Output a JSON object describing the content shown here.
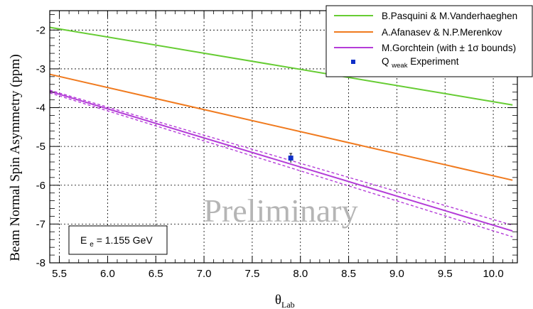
{
  "chart_data": {
    "type": "line",
    "xlabel_main": "θ",
    "xlabel_sub": "Lab",
    "ylabel": "Beam Normal Spin Asymmetry (ppm)",
    "xlim": [
      5.4,
      10.25
    ],
    "ylim": [
      -8,
      -1.5
    ],
    "xticks": [
      "5.5",
      "6.0",
      "6.5",
      "7.0",
      "7.5",
      "8.0",
      "8.5",
      "9.0",
      "9.5",
      "10.0"
    ],
    "yticks": [
      "-2",
      "-3",
      "-4",
      "-5",
      "-6",
      "-7",
      "-8"
    ],
    "grid": true,
    "legend_position": "top-right",
    "watermark": "Preliminary",
    "energy_label": {
      "main": "E",
      "sub": "e",
      "rest": " = 1.155 GeV"
    },
    "series": [
      {
        "name": "B.Pasquini & M.Vanderhaeghen",
        "color": "#66cc33",
        "x": [
          5.4,
          10.2
        ],
        "y": [
          -1.93,
          -3.93
        ]
      },
      {
        "name": "A.Afanasev & N.P.Merenkov",
        "color": "#f07a1e",
        "x": [
          5.4,
          10.2
        ],
        "y": [
          -3.14,
          -5.87
        ]
      },
      {
        "name": "M.Gorchtein (with ± 1σ bounds)",
        "color": "#b43cd8",
        "x": [
          5.4,
          10.2
        ],
        "y": [
          -3.58,
          -7.18
        ],
        "upper_bound": [
          -3.55,
          -7.03
        ],
        "lower_bound": [
          -3.62,
          -7.33
        ]
      }
    ],
    "experiment": {
      "name_main": "Q",
      "name_sub": "weak",
      "name_rest": " Experiment",
      "color": "#1030c8",
      "x": 7.9,
      "y": -5.3,
      "err": 0.12
    }
  }
}
